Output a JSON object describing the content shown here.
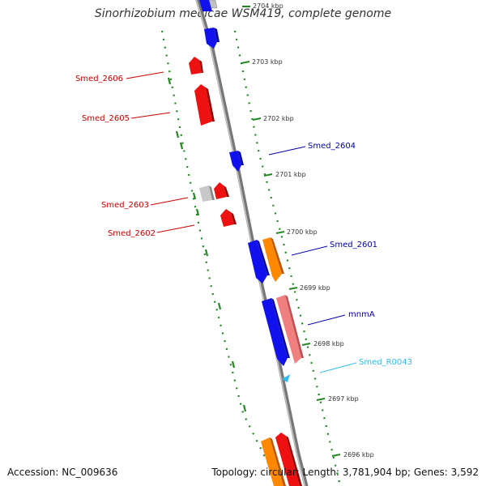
{
  "title": "Sinorhizobium medicae WSM419, complete genome",
  "accession": "Accession: NC_009636",
  "summary": "Topology: circular; Length: 3,781,904 bp; Genes: 3,592",
  "ticks": [
    "2704 kbp",
    "2703 kbp",
    "2702 kbp",
    "2701 kbp",
    "2700 kbp",
    "2699 kbp",
    "2698 kbp",
    "2697 kbp",
    "2696 kbp"
  ],
  "labels": {
    "smed_2606": "Smed_2606",
    "smed_2605": "Smed_2605",
    "smed_2604": "Smed_2604",
    "smed_2603": "Smed_2603",
    "smed_2602": "Smed_2602",
    "smed_2601": "Smed_2601",
    "mnma": "mnmA",
    "smed_r0043": "Smed_R0043"
  },
  "colors": {
    "gene_red": "#ee1111",
    "gene_blue": "#1111ee",
    "gene_orange": "#ff8800",
    "gene_pink": "#f08080",
    "gene_grey": "#c0c0c0",
    "rna_cyan": "#33bbee",
    "backbone": "#888888",
    "tick_green": "#228822",
    "label_red": "#cc0000",
    "label_blue": "#0000aa",
    "label_cyan": "#33bbee"
  }
}
